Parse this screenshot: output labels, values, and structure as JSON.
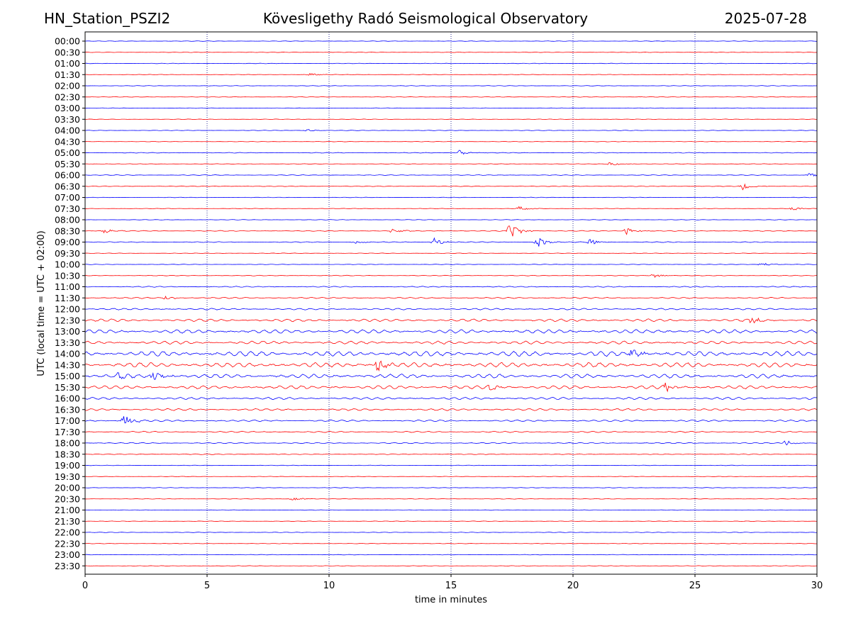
{
  "header": {
    "station": "HN_Station_PSZI2",
    "observatory": "Kövesligethy Radó Seismological Observatory",
    "date": "2025-07-28"
  },
  "colors": {
    "a": "#0000ff",
    "b": "#ff0000",
    "axis": "#000000",
    "grid": "#000080"
  },
  "chart_data": {
    "type": "line",
    "title": "Kövesligethy Radó Seismological Observatory",
    "xlabel": "time in minutes",
    "ylabel": "UTC (local time = UTC + 02:00)",
    "xlim": [
      0,
      30
    ],
    "xticks": [
      0,
      5,
      10,
      15,
      20,
      25,
      30
    ],
    "grid": "x-dotted",
    "row_labels": [
      "00:00",
      "00:30",
      "01:00",
      "01:30",
      "02:00",
      "02:30",
      "03:00",
      "03:30",
      "04:00",
      "04:30",
      "05:00",
      "05:30",
      "06:00",
      "06:30",
      "07:00",
      "07:30",
      "08:00",
      "08:30",
      "09:00",
      "09:30",
      "10:00",
      "10:30",
      "11:00",
      "11:30",
      "12:00",
      "12:30",
      "13:00",
      "13:30",
      "14:00",
      "14:30",
      "15:00",
      "15:30",
      "16:00",
      "16:30",
      "17:00",
      "17:30",
      "18:00",
      "18:30",
      "19:00",
      "19:30",
      "20:00",
      "20:30",
      "21:00",
      "21:30",
      "22:00",
      "22:30",
      "23:00",
      "23:30"
    ],
    "noise_level": [
      0.3,
      0.3,
      0.3,
      0.3,
      0.3,
      0.3,
      0.3,
      0.3,
      0.3,
      0.3,
      0.4,
      0.3,
      0.4,
      0.4,
      0.3,
      0.3,
      0.3,
      0.5,
      0.5,
      0.3,
      0.3,
      0.4,
      0.6,
      0.8,
      1.0,
      1.6,
      2.2,
      1.8,
      3.0,
      2.8,
      2.4,
      2.0,
      1.4,
      1.2,
      1.0,
      0.8,
      0.6,
      0.5,
      0.3,
      0.3,
      0.3,
      0.3,
      0.3,
      0.3,
      0.3,
      0.3,
      0.3,
      0.3
    ],
    "events": [
      {
        "row": 3,
        "t": 9.2,
        "amp": 2
      },
      {
        "row": 8,
        "t": 9.1,
        "amp": 2
      },
      {
        "row": 10,
        "t": 15.3,
        "amp": 4
      },
      {
        "row": 11,
        "t": 21.5,
        "amp": 3
      },
      {
        "row": 12,
        "t": 29.7,
        "amp": 3
      },
      {
        "row": 13,
        "t": 26.9,
        "amp": 6
      },
      {
        "row": 15,
        "t": 17.8,
        "amp": 4
      },
      {
        "row": 15,
        "t": 29.0,
        "amp": 3
      },
      {
        "row": 17,
        "t": 0.8,
        "amp": 3
      },
      {
        "row": 17,
        "t": 12.6,
        "amp": 4
      },
      {
        "row": 17,
        "t": 17.4,
        "amp": 12
      },
      {
        "row": 17,
        "t": 22.2,
        "amp": 5
      },
      {
        "row": 18,
        "t": 11.0,
        "amp": 3
      },
      {
        "row": 18,
        "t": 14.3,
        "amp": 6
      },
      {
        "row": 18,
        "t": 18.5,
        "amp": 9
      },
      {
        "row": 18,
        "t": 20.7,
        "amp": 4
      },
      {
        "row": 20,
        "t": 27.7,
        "amp": 3
      },
      {
        "row": 21,
        "t": 23.3,
        "amp": 3
      },
      {
        "row": 23,
        "t": 3.3,
        "amp": 3
      },
      {
        "row": 25,
        "t": 27.3,
        "amp": 5
      },
      {
        "row": 28,
        "t": 22.4,
        "amp": 7
      },
      {
        "row": 29,
        "t": 12.0,
        "amp": 10
      },
      {
        "row": 30,
        "t": 2.8,
        "amp": 8
      },
      {
        "row": 30,
        "t": 1.3,
        "amp": 5
      },
      {
        "row": 31,
        "t": 16.6,
        "amp": 5
      },
      {
        "row": 31,
        "t": 23.8,
        "amp": 6
      },
      {
        "row": 34,
        "t": 1.6,
        "amp": 9
      },
      {
        "row": 36,
        "t": 28.7,
        "amp": 4
      },
      {
        "row": 41,
        "t": 8.5,
        "amp": 3
      }
    ]
  }
}
